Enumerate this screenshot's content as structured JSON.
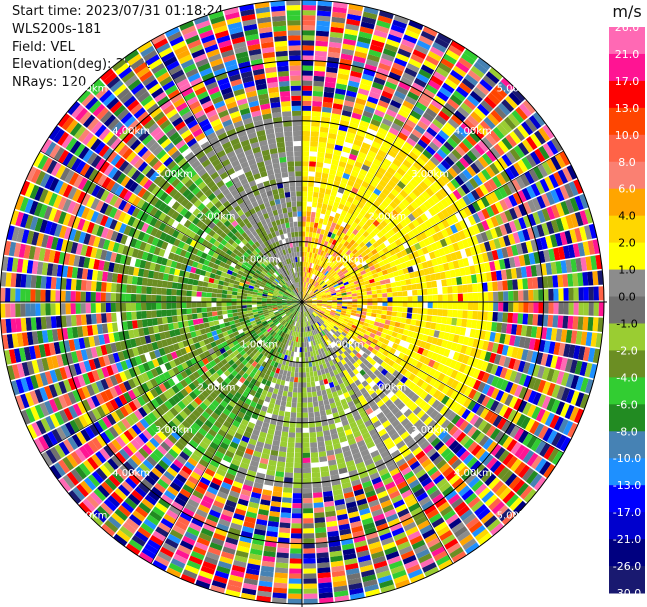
{
  "header": {
    "start_time": "Start time: 2023/07/31 01:18:24",
    "instrument": "WLS200s-181",
    "field": "Field: VEL",
    "elevation": "Elevation(deg): 35.30",
    "nrays": "NRays: 120"
  },
  "range_rings": {
    "labels": [
      "1.00km",
      "2.00km",
      "3.00km",
      "4.00km",
      "5.00km"
    ]
  },
  "colorbar": {
    "unit": "m/s",
    "ticks": [
      "26.0",
      "21.0",
      "17.0",
      "13.0",
      "10.0",
      "8.0",
      "6.0",
      "4.0",
      "2.0",
      "1.0",
      "0.0",
      "-1.0",
      "-2.0",
      "-4.0",
      "-6.0",
      "-8.0",
      "-10.0",
      "-13.0",
      "-17.0",
      "-21.0",
      "-26.0",
      "-30.0"
    ],
    "colors": [
      "#ff69b4",
      "#ff1493",
      "#ff0000",
      "#ff4500",
      "#ff6347",
      "#fa8072",
      "#ffa500",
      "#ffd700",
      "#ffff00",
      "#8c8c8c",
      "#707070",
      "#9acd32",
      "#6b8e23",
      "#32cd32",
      "#228b22",
      "#4682b4",
      "#1e90ff",
      "#0000ff",
      "#0000cd",
      "#000080",
      "#191970"
    ]
  },
  "chart_data": {
    "type": "ppi",
    "field": "VEL",
    "units": "m/s",
    "n_rays": 120,
    "max_range_km": 5.0,
    "range_ring_km": [
      1.0,
      2.0,
      3.0,
      4.0,
      5.0
    ],
    "color_levels": [
      -30.0,
      -26.0,
      -21.0,
      -17.0,
      -13.0,
      -10.0,
      -8.0,
      -6.0,
      -4.0,
      -2.0,
      -1.0,
      0.0,
      1.0,
      2.0,
      4.0,
      6.0,
      8.0,
      10.0,
      13.0,
      17.0,
      21.0,
      26.0
    ]
  }
}
